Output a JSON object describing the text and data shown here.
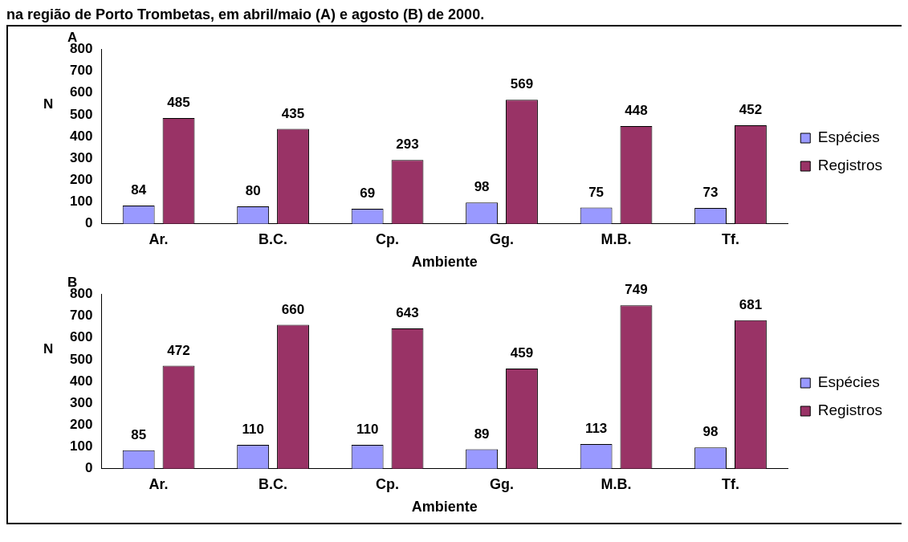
{
  "chart_data": [
    {
      "type": "bar",
      "title": "A",
      "annotations": [
        "na região de Porto Trombetas, em abril/maio (A) e agosto (B) de 2000."
      ],
      "xlabel": "Ambiente",
      "ylabel": "N",
      "categories": [
        "Ar.",
        "B.C.",
        "Cp.",
        "Gg.",
        "M.B.",
        "Tf."
      ],
      "series": [
        {
          "name": "Espécies",
          "color": "#9999ff",
          "values": [
            84,
            80,
            69,
            98,
            75,
            73
          ]
        },
        {
          "name": "Registros",
          "color": "#993366",
          "values": [
            485,
            435,
            293,
            569,
            448,
            452
          ]
        }
      ],
      "ylim": [
        0,
        800
      ],
      "yticks": [
        0,
        100,
        200,
        300,
        400,
        500,
        600,
        700,
        800
      ],
      "grid": false,
      "legend": "right",
      "data_labels": true
    },
    {
      "type": "bar",
      "title": "B",
      "xlabel": "Ambiente",
      "ylabel": "N",
      "categories": [
        "Ar.",
        "B.C.",
        "Cp.",
        "Gg.",
        "M.B.",
        "Tf."
      ],
      "series": [
        {
          "name": "Espécies",
          "color": "#9999ff",
          "values": [
            85,
            110,
            110,
            89,
            113,
            98
          ]
        },
        {
          "name": "Registros",
          "color": "#993366",
          "values": [
            472,
            660,
            643,
            459,
            749,
            681
          ]
        }
      ],
      "ylim": [
        0,
        800
      ],
      "yticks": [
        0,
        100,
        200,
        300,
        400,
        500,
        600,
        700,
        800
      ],
      "grid": false,
      "legend": "right",
      "data_labels": true
    }
  ]
}
